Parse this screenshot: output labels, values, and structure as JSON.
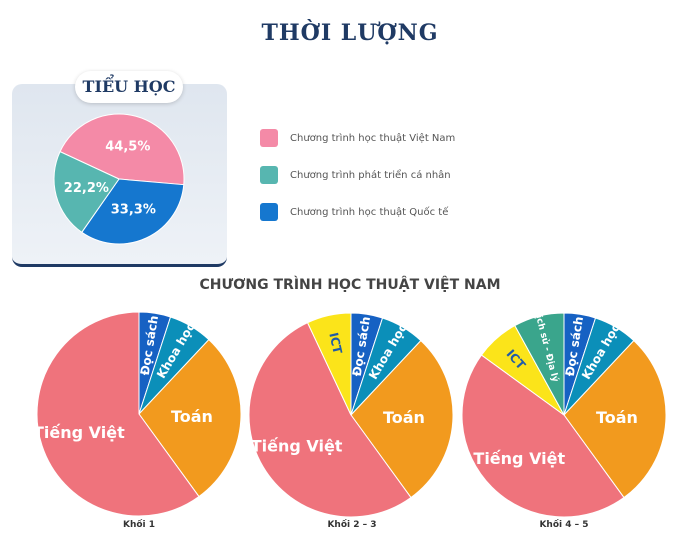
{
  "page": {
    "title": "THỜI LƯỢNG",
    "subtitle": "CHƯƠNG TRÌNH HỌC THUẬT VIỆT NAM"
  },
  "card": {
    "label": "TIỂU HỌC"
  },
  "colors": {
    "pink": "#f48aa7",
    "teal": "#57b6b0",
    "blue": "#1577cf",
    "red": "#ef737c",
    "orange": "#f29a1e",
    "yellow": "#fbe41a",
    "green": "#3aa58c",
    "cyan": "#0b8fb9",
    "darkblue": "#1661c3",
    "navy": "#1f3a64"
  },
  "chart_data": [
    {
      "type": "pie",
      "title": "TIỂU HỌC",
      "slices": [
        {
          "label": "Chương trình học thuật Việt Nam",
          "value": 44.5,
          "value_label": "44,5%",
          "color": "#f48aa7"
        },
        {
          "label": "Chương trình học thuật Quốc tế",
          "value": 33.3,
          "value_label": "33,3%",
          "color": "#1577cf"
        },
        {
          "label": "Chương trình phát triển cá nhân",
          "value": 22.2,
          "value_label": "22,2%",
          "color": "#57b6b0"
        }
      ],
      "legend": [
        {
          "label": "Chương trình học thuật Việt Nam",
          "color": "#f48aa7"
        },
        {
          "label": "Chương trình phát triển cá nhân",
          "color": "#57b6b0"
        },
        {
          "label": "Chương trình học thuật Quốc tế",
          "color": "#1577cf"
        }
      ]
    },
    {
      "type": "pie",
      "title": "Khối 1",
      "slices": [
        {
          "label": "Đọc sách",
          "value": 5,
          "color": "#1661c3"
        },
        {
          "label": "Khoa học",
          "value": 7,
          "color": "#0b8fb9"
        },
        {
          "label": "Toán",
          "value": 28,
          "color": "#f29a1e"
        },
        {
          "label": "Tiếng Việt",
          "value": 60,
          "color": "#ef737c"
        }
      ]
    },
    {
      "type": "pie",
      "title": "Khối 2 – 3",
      "slices": [
        {
          "label": "Đọc sách",
          "value": 5,
          "color": "#1661c3"
        },
        {
          "label": "Khoa học",
          "value": 7,
          "color": "#0b8fb9"
        },
        {
          "label": "Toán",
          "value": 28,
          "color": "#f29a1e"
        },
        {
          "label": "Tiếng Việt",
          "value": 53,
          "color": "#ef737c"
        },
        {
          "label": "ICT",
          "value": 7,
          "color": "#fbe41a"
        }
      ]
    },
    {
      "type": "pie",
      "title": "Khối 4 – 5",
      "slices": [
        {
          "label": "Đọc sách",
          "value": 5,
          "color": "#1661c3"
        },
        {
          "label": "Khoa học",
          "value": 7,
          "color": "#0b8fb9"
        },
        {
          "label": "Toán",
          "value": 28,
          "color": "#f29a1e"
        },
        {
          "label": "Tiếng Việt",
          "value": 45,
          "color": "#ef737c"
        },
        {
          "label": "ICT",
          "value": 7,
          "color": "#fbe41a"
        },
        {
          "label": "Lịch sử - Địa lý",
          "value": 8,
          "color": "#3aa58c"
        }
      ]
    }
  ]
}
